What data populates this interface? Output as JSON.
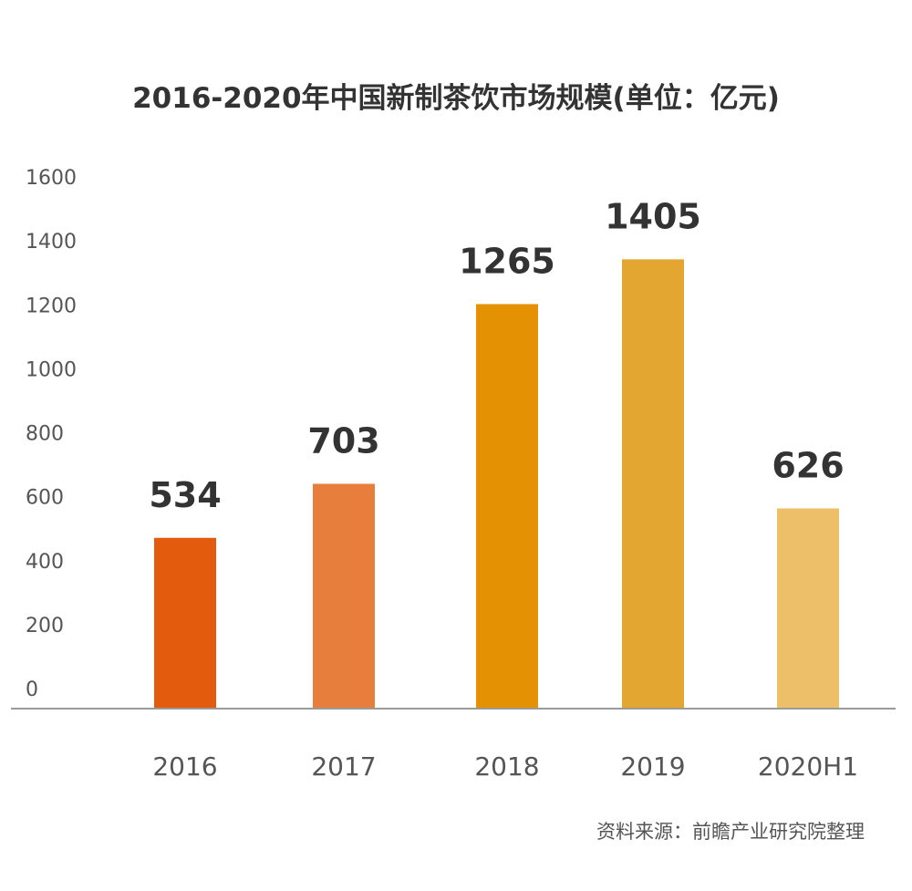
{
  "chart_data": {
    "type": "bar",
    "title": "2016-2020年中国新制茶饮市场规模(单位：亿元)",
    "categories": [
      "2016",
      "2017",
      "2018",
      "2019",
      "2020H1"
    ],
    "values": [
      534,
      703,
      1265,
      1405,
      626
    ],
    "data_labels": [
      "534",
      "703",
      "1265",
      "1405",
      "626"
    ],
    "colors": [
      "#E35B0C",
      "#E87E3C",
      "#E59104",
      "#E3A631",
      "#EDBF69"
    ],
    "yticks": [
      "0",
      "200",
      "400",
      "600",
      "800",
      "1000",
      "1200",
      "1400",
      "1600"
    ],
    "ylim": [
      0,
      1600
    ],
    "xlabel": "",
    "ylabel": "",
    "grid": false,
    "legend": "none"
  },
  "source": "资料来源：前瞻产业研究院整理"
}
